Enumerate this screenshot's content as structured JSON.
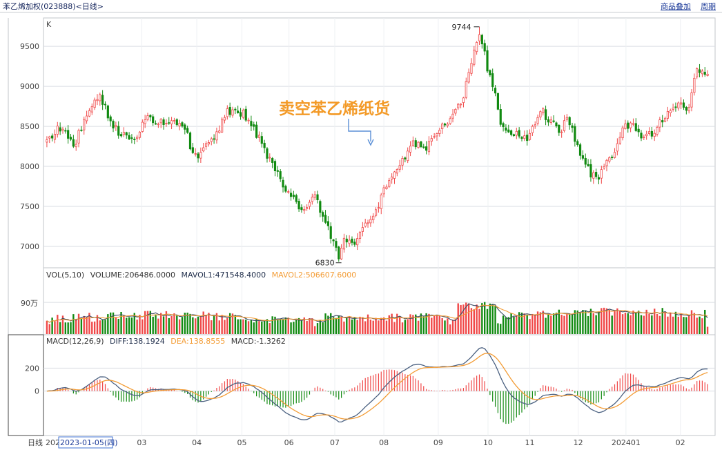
{
  "window": {
    "title": "苯乙烯加权(023888)<日线>",
    "links": [
      "商品叠加",
      "周期"
    ]
  },
  "colors": {
    "up": "#f04848",
    "down": "#118a11",
    "diff": "#4a6080",
    "dea": "#f39c35",
    "mavol1": "#3c4a62",
    "mavol2": "#f39c35",
    "annotation": "#f39a27",
    "grid": "#d9dde3"
  },
  "annotation": {
    "text": "卖空苯乙烯纸货"
  },
  "panels": {
    "kline": {
      "label": "K",
      "max_label": "9744",
      "min_label": "6830"
    },
    "volume": {
      "prefix": "VOL(5,10)",
      "volume": "VOLUME:206486.0000",
      "mavol1": "MAVOL1:471548.4000",
      "mavol2": "MAVOL2:506607.6000",
      "tick": "90万"
    },
    "macd": {
      "prefix": "MACD(12,26,9)",
      "diff": "DIFF:138.1924",
      "dea": "DEA:138.8555",
      "macd": "MACD:-1.3262"
    }
  },
  "xaxis": {
    "period_label": "日线",
    "cursor_date": "2023-01-05(四)",
    "months": [
      {
        "label": "2023",
        "pos": 0.0
      },
      {
        "label": "03",
        "pos": 0.145
      },
      {
        "label": "04",
        "pos": 0.228
      },
      {
        "label": "05",
        "pos": 0.296
      },
      {
        "label": "06",
        "pos": 0.367
      },
      {
        "label": "07",
        "pos": 0.436
      },
      {
        "label": "08",
        "pos": 0.51
      },
      {
        "label": "09",
        "pos": 0.592
      },
      {
        "label": "10",
        "pos": 0.667
      },
      {
        "label": "11",
        "pos": 0.73
      },
      {
        "label": "12",
        "pos": 0.803
      },
      {
        "label": "202401",
        "pos": 0.875
      },
      {
        "label": "02",
        "pos": 0.957
      }
    ]
  },
  "chart_data": {
    "type": "candlestick",
    "title": "苯乙烯加权(023888)<日线>",
    "ylim": [
      6750,
      9820
    ],
    "yticks": [
      7000,
      7500,
      8000,
      8500,
      9000,
      9500
    ],
    "n_bars": 250,
    "price_anchors": [
      [
        0,
        8350
      ],
      [
        8,
        8500
      ],
      [
        14,
        8250
      ],
      [
        22,
        8750
      ],
      [
        27,
        8920
      ],
      [
        33,
        8550
      ],
      [
        38,
        8400
      ],
      [
        45,
        8350
      ],
      [
        52,
        8600
      ],
      [
        58,
        8550
      ],
      [
        65,
        8580
      ],
      [
        72,
        8400
      ],
      [
        76,
        8100
      ],
      [
        85,
        8300
      ],
      [
        92,
        8660
      ],
      [
        98,
        8700
      ],
      [
        104,
        8600
      ],
      [
        110,
        8300
      ],
      [
        118,
        7950
      ],
      [
        126,
        7600
      ],
      [
        132,
        7450
      ],
      [
        138,
        7600
      ],
      [
        146,
        7150
      ],
      [
        150,
        6850
      ],
      [
        153,
        7100
      ],
      [
        158,
        7050
      ],
      [
        163,
        7250
      ],
      [
        170,
        7500
      ],
      [
        176,
        7850
      ],
      [
        182,
        8000
      ],
      [
        188,
        8300
      ],
      [
        194,
        8200
      ],
      [
        202,
        8450
      ],
      [
        210,
        8650
      ],
      [
        214,
        8850
      ],
      [
        218,
        9300
      ],
      [
        223,
        9690
      ],
      [
        226,
        9300
      ],
      [
        230,
        8950
      ],
      [
        234,
        8500
      ],
      [
        240,
        8400
      ],
      [
        247,
        8350
      ],
      [
        254,
        8700
      ],
      [
        258,
        8600
      ],
      [
        264,
        8450
      ],
      [
        268,
        8600
      ],
      [
        274,
        8200
      ],
      [
        280,
        7900
      ],
      [
        284,
        7850
      ],
      [
        290,
        8100
      ],
      [
        296,
        8450
      ],
      [
        300,
        8550
      ],
      [
        307,
        8350
      ],
      [
        313,
        8450
      ],
      [
        318,
        8650
      ],
      [
        324,
        8800
      ],
      [
        330,
        8700
      ],
      [
        334,
        9250
      ],
      [
        338,
        9150
      ],
      [
        340,
        9150
      ]
    ],
    "max_point": {
      "value": 9744,
      "label": "9744"
    },
    "min_point": {
      "value": 6830,
      "label": "6830"
    },
    "volume": {
      "tick_value": 900000,
      "ylim": [
        0,
        1550000
      ],
      "last": 206486.0,
      "mavol1_last": 471548.4,
      "mavol2_last": 506607.6
    },
    "macd": {
      "ylim": [
        -380,
        400
      ],
      "yticks": [
        0,
        200
      ],
      "diff_last": 138.1924,
      "dea_last": 138.8555,
      "macd_last": -1.3262
    }
  }
}
